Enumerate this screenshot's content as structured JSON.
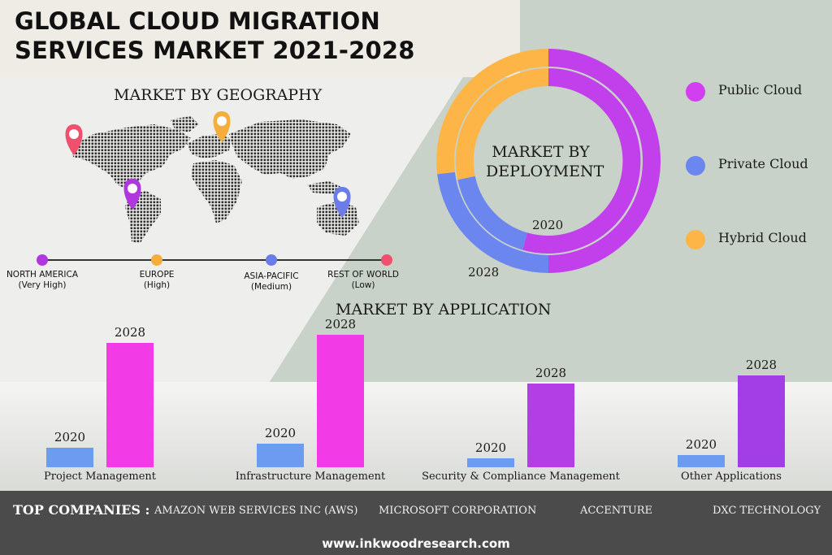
{
  "header": {
    "title": "GLOBAL CLOUD MIGRATION SERVICES MARKET 2021-2028"
  },
  "geography": {
    "title": "MARKET BY GEOGRAPHY",
    "regions": [
      {
        "name": "NORTH AMERICA",
        "level": "(Very High)",
        "color": "#b036e0"
      },
      {
        "name": "EUROPE",
        "level": "(High)",
        "color": "#f5ad3c"
      },
      {
        "name": "ASIA-PACIFIC",
        "level": "(Medium)",
        "color": "#6b7be8"
      },
      {
        "name": "REST OF WORLD",
        "level": "(Low)",
        "color": "#f0506e"
      }
    ],
    "pin_colors": [
      "#f0506e",
      "#f5ad3c",
      "#b036e0",
      "#6b7be8"
    ]
  },
  "deployment": {
    "title": "MARKET BY DEPLOYMENT",
    "ring_labels": {
      "inner": "2020",
      "outer": "2028"
    },
    "legend": [
      {
        "label": "Public Cloud",
        "color": "#d23ff0"
      },
      {
        "label": "Private Cloud",
        "color": "#6b86ee"
      },
      {
        "label": "Hybrid Cloud",
        "color": "#fcb546"
      }
    ]
  },
  "chart_data": {
    "type": "bar",
    "title": "MARKET BY APPLICATION",
    "categories": [
      "Project  Management",
      "Infrastructure  Management",
      "Security &  Compliance  Management",
      "Other Applications"
    ],
    "series": [
      {
        "name": "2020",
        "values": [
          24,
          29,
          11,
          15
        ],
        "color": "#6b9cf0"
      },
      {
        "name": "2028",
        "values": [
          153,
          163,
          103,
          113
        ],
        "colors": [
          "#f23ae6",
          "#f23ae6",
          "#b33ee6",
          "#a33ee6"
        ]
      }
    ]
  },
  "footer": {
    "companies_label": "TOP COMPANIES :",
    "companies": [
      "AMAZON WEB SERVICES INC (AWS)",
      "MICROSOFT CORPORATION",
      "ACCENTURE",
      "DXC TECHNOLOGY"
    ],
    "website": "www.inkwoodresearch.com"
  }
}
